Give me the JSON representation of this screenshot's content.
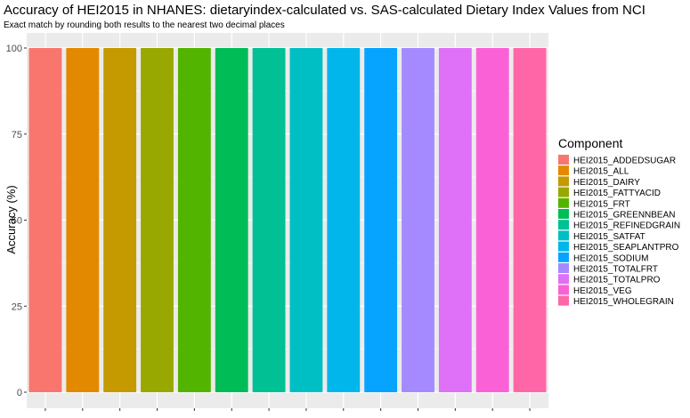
{
  "chart_data": {
    "type": "bar",
    "title": "Accuracy of HEI2015 in NHANES: dietaryindex-calculated vs. SAS-calculated Dietary Index Values from NCI",
    "subtitle": "Exact match by rounding both results to the nearest two decimal places",
    "xlabel": "",
    "ylabel": "Accuracy (%)",
    "ylim": [
      0,
      100
    ],
    "yticks": [
      0,
      25,
      50,
      75,
      100
    ],
    "grid": true,
    "legend_position": "right",
    "legend_title": "Component",
    "categories": [
      "HEI2015_ADDEDSUGAR",
      "HEI2015_ALL",
      "HEI2015_DAIRY",
      "HEI2015_FATTYACID",
      "HEI2015_FRT",
      "HEI2015_GREENNBEAN",
      "HEI2015_REFINEDGRAIN",
      "HEI2015_SATFAT",
      "HEI2015_SEAPLANTPRO",
      "HEI2015_SODIUM",
      "HEI2015_TOTALFRT",
      "HEI2015_TOTALPRO",
      "HEI2015_VEG",
      "HEI2015_WHOLEGRAIN"
    ],
    "values": [
      100,
      100,
      100,
      100,
      100,
      100,
      100,
      100,
      100,
      100,
      100,
      100,
      100,
      100
    ],
    "colors": [
      "#F8766D",
      "#E38900",
      "#C49A00",
      "#99A800",
      "#53B400",
      "#00BC56",
      "#00C094",
      "#00BFC4",
      "#00B6EB",
      "#06A4FF",
      "#A58AFF",
      "#DF70F8",
      "#FB61D7",
      "#FF66A8"
    ],
    "panel_background": "#EBEBEB",
    "grid_color": "#FFFFFF"
  }
}
